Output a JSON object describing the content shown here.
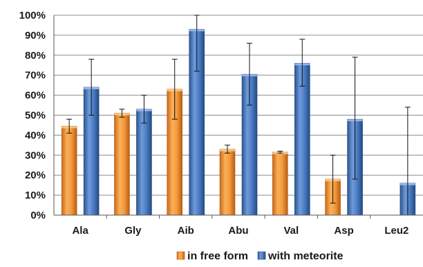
{
  "chart_data": {
    "type": "bar",
    "categories": [
      "Ala",
      "Gly",
      "Aib",
      "Abu",
      "Val",
      "Asp",
      "Leu2"
    ],
    "series": [
      {
        "name": "in free form",
        "color": "#F39A3C",
        "values": [
          44.5,
          51,
          63,
          33,
          31.5,
          18,
          null
        ],
        "error_low": [
          41,
          49,
          48,
          31,
          31,
          6,
          null
        ],
        "error_high": [
          48,
          53,
          78,
          35,
          32,
          30,
          null
        ]
      },
      {
        "name": "with meteorite",
        "color": "#4A7CC4",
        "values": [
          64,
          53,
          93,
          70.5,
          76,
          48,
          16
        ],
        "error_low": [
          50,
          46,
          72,
          55,
          64.5,
          18,
          0
        ],
        "error_high": [
          78,
          60,
          100,
          86,
          88,
          79,
          54
        ]
      }
    ],
    "y_tick_labels": [
      "0%",
      "10%",
      "20%",
      "30%",
      "40%",
      "50%",
      "60%",
      "70%",
      "80%",
      "90%",
      "100%"
    ],
    "ylim": [
      0,
      100
    ],
    "grid": true,
    "legend_position": "bottom",
    "title": "",
    "xlabel": "",
    "ylabel": ""
  }
}
